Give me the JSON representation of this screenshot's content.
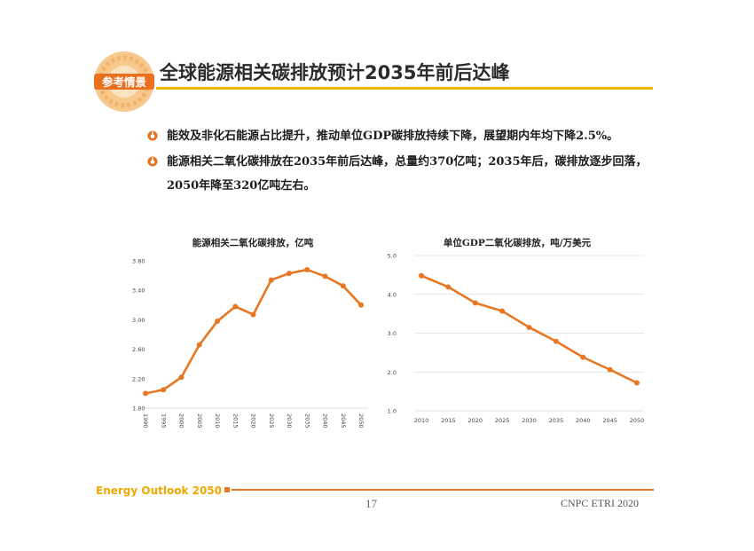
{
  "header": {
    "logo_text": "参考情景",
    "title": "全球能源相关碳排放预计2035年前后达峰"
  },
  "bullets": [
    "能效及非化石能源占比提升，推动单位GDP碳排放持续下降，展望期内年均下降2.5%。",
    "能源相关二氧化碳排放在2035年前后达峰，总量约370亿吨；2035年后，碳排放逐步回落，2050年降至320亿吨左右。"
  ],
  "colors": {
    "accent": "#e87722",
    "gold": "#f0b400",
    "grid": "#cccccc"
  },
  "chart_data": [
    {
      "type": "line",
      "title": "能源相关二氧化碳排放，亿吨",
      "categories": [
        "1990",
        "1995",
        "2000",
        "2005",
        "2010",
        "2015",
        "2020",
        "2025",
        "2030",
        "2035",
        "2040",
        "2045",
        "2050"
      ],
      "y_tick_labels": [
        "1.80",
        "2.20",
        "2.60",
        "3.00",
        "3.40",
        "3.80"
      ],
      "values": [
        2.0,
        2.05,
        2.22,
        2.66,
        2.98,
        3.18,
        3.07,
        3.54,
        3.63,
        3.68,
        3.59,
        3.46,
        3.2
      ],
      "ylim": [
        1.8,
        3.8
      ],
      "ylabel": "",
      "xlabel": "",
      "grid": false
    },
    {
      "type": "line",
      "title": "单位GDP二氧化碳排放，吨/万美元",
      "categories": [
        "2010",
        "2015",
        "2020",
        "2025",
        "2030",
        "2035",
        "2040",
        "2045",
        "2050"
      ],
      "y_tick_labels": [
        "1.0",
        "2.0",
        "3.0",
        "4.0",
        "5.0"
      ],
      "values": [
        4.48,
        4.19,
        3.78,
        3.57,
        3.15,
        2.79,
        2.38,
        2.06,
        1.72
      ],
      "ylim": [
        1.0,
        5.0
      ],
      "ylabel": "",
      "xlabel": "",
      "grid": true
    }
  ],
  "footer": {
    "brand": "Energy Outlook 2050",
    "page": "17",
    "org": "CNPC ETRI 2020"
  }
}
